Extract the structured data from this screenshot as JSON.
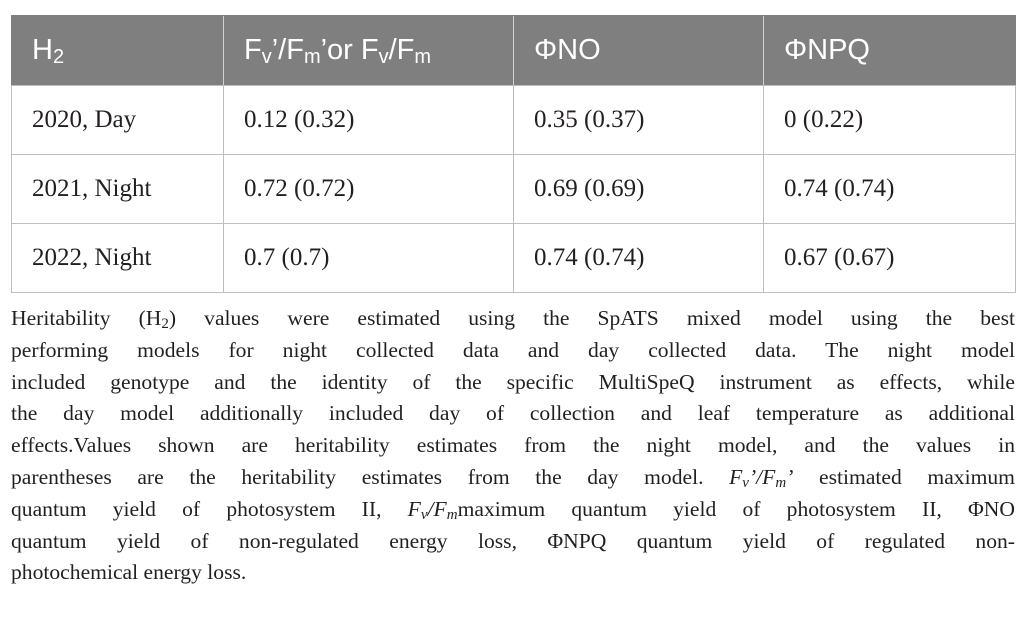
{
  "table": {
    "header": {
      "col1": {
        "main": "H",
        "sub": "2"
      },
      "col2": {
        "p1": "F",
        "s1": "v",
        "p2": "’/F",
        "s2": "m",
        "p3": "’or F",
        "s3": "v",
        "p4": "/F",
        "s4": "m"
      },
      "col3": "ΦNO",
      "col4": "ΦNPQ"
    },
    "rows": [
      {
        "label": "2020, Day",
        "fv_fm": "0.12 (0.32)",
        "phi_no": "0.35 (0.37)",
        "phi_npq": "0 (0.22)"
      },
      {
        "label": "2021, Night",
        "fv_fm": "0.72 (0.72)",
        "phi_no": "0.69 (0.69)",
        "phi_npq": "0.74 (0.74)"
      },
      {
        "label": "2022, Night",
        "fv_fm": "0.7 (0.7)",
        "phi_no": "0.74 (0.74)",
        "phi_npq": "0.67 (0.67)"
      }
    ]
  },
  "caption": {
    "l1a": "Heritability (H",
    "l1sub": "2",
    "l1b": ") values were estimated using the SpATS mixed model using the best",
    "l2": "performing models for night collected data and day collected data. The night model",
    "l3": "included genotype and the identity of the specific MultiSpeQ instrument as effects, while",
    "l4": "the day model additionally included day of collection and leaf temperature as additional",
    "l5": "effects.Values shown are heritability estimates from the night model, and the values in",
    "l6": "parentheses are the heritability estimates from the day model.",
    "l7_f1": "F",
    "l7_s1": "v",
    "l7_p1": "’/F",
    "l7_s2": "m",
    "l7_p2": "’",
    "l7_rest": " estimated maximum",
    "l8a": "quantum yield of photosystem II, ",
    "l8_f": "F",
    "l8_s1": "v",
    "l8_p": "/F",
    "l8_s2": "m",
    "l8b": "maximum quantum yield of photosystem II, ΦNO",
    "l9": "quantum yield of non-regulated energy loss, ΦNPQ quantum yield of regulated non-",
    "l10": "photochemical energy loss."
  }
}
